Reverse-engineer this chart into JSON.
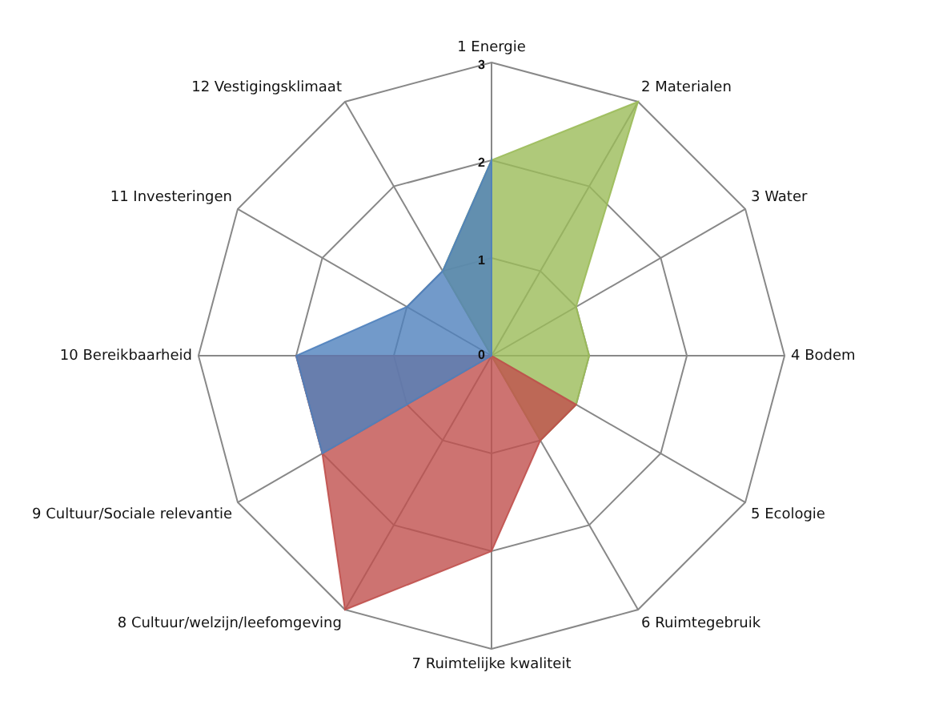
{
  "chart_data": {
    "type": "radar",
    "categories": [
      "1 Energie",
      "2 Materialen",
      "3 Water",
      "4 Bodem",
      "5 Ecologie",
      "6 Ruimtegebruik",
      "7 Ruimtelijke kwaliteit",
      "8 Cultuur/welzijn/leefomgeving",
      "9 Cultuur/Sociale relevantie",
      "10 Bereikbaarheid",
      "11 Investeringen",
      "12 Vestigingsklimaat"
    ],
    "series": [
      {
        "color": "#9bbb59",
        "values": [
          2,
          3,
          1,
          1,
          1,
          1,
          0,
          0,
          0,
          0,
          0,
          1
        ]
      },
      {
        "color": "#c0504d",
        "values": [
          0,
          0,
          0,
          0,
          1,
          1,
          2,
          3,
          2,
          2,
          0,
          0
        ]
      },
      {
        "color": "#4f81bd",
        "values": [
          2,
          0,
          0,
          0,
          0,
          0,
          0,
          0,
          2,
          2,
          1,
          1
        ]
      }
    ],
    "ylim": [
      0,
      3
    ],
    "yticks": [
      0,
      1,
      2,
      3
    ],
    "grid": true,
    "legend": false,
    "marker": "none"
  }
}
